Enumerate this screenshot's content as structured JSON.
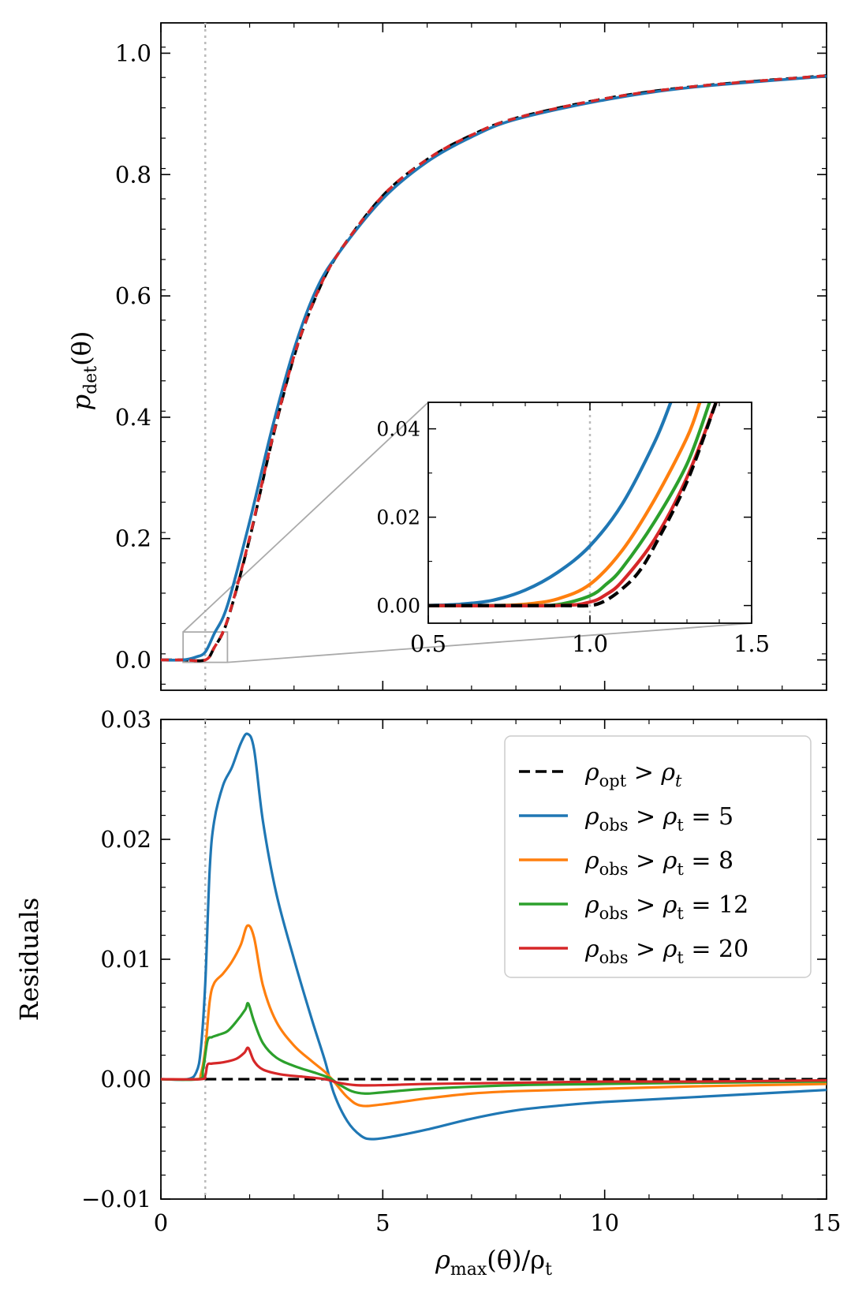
{
  "chart_data": [
    {
      "id": "top",
      "type": "line",
      "ylabel": "p_det(θ)",
      "xlim": [
        0,
        15
      ],
      "ylim": [
        -0.05,
        1.05
      ],
      "xticks": [
        0,
        5,
        10,
        15
      ],
      "yticks": [
        0.0,
        0.2,
        0.4,
        0.6,
        0.8,
        1.0
      ],
      "ytick_labels": [
        "0.0",
        "0.2",
        "0.4",
        "0.6",
        "0.8",
        "1.0"
      ],
      "vline_x": 1.0,
      "series": [
        {
          "name": "ρ_opt > ρ_t",
          "color": "#000000",
          "style": "dashed",
          "x": [
            0,
            0.5,
            1.0,
            1.2,
            1.5,
            2.0,
            2.5,
            3.0,
            3.5,
            4.0,
            5.0,
            6.0,
            7.0,
            8.0,
            10.0,
            12.0,
            15.0
          ],
          "y": [
            0.0,
            0.0,
            0.0,
            0.02,
            0.065,
            0.2,
            0.36,
            0.5,
            0.6,
            0.67,
            0.765,
            0.825,
            0.865,
            0.893,
            0.925,
            0.945,
            0.963
          ]
        },
        {
          "name": "ρ_obs > ρ_t = 5",
          "color": "#1f77b4",
          "style": "solid",
          "x": [
            0,
            0.5,
            0.8,
            1.0,
            1.2,
            1.5,
            2.0,
            2.5,
            3.0,
            3.5,
            4.0,
            5.0,
            6.0,
            7.0,
            8.0,
            10.0,
            12.0,
            15.0
          ],
          "y": [
            0.0,
            0.0,
            0.005,
            0.013,
            0.043,
            0.09,
            0.228,
            0.38,
            0.512,
            0.61,
            0.67,
            0.76,
            0.821,
            0.862,
            0.891,
            0.923,
            0.944,
            0.962
          ]
        },
        {
          "name": "ρ_obs > ρ_t = 20",
          "color": "#d62728",
          "style": "dashed",
          "x": [
            0,
            0.5,
            1.0,
            1.2,
            1.5,
            2.0,
            2.5,
            3.0,
            3.5,
            4.0,
            5.0,
            6.0,
            7.0,
            8.0,
            10.0,
            12.0,
            15.0
          ],
          "y": [
            0.0,
            0.0,
            0.0,
            0.02,
            0.066,
            0.202,
            0.362,
            0.501,
            0.601,
            0.67,
            0.765,
            0.825,
            0.865,
            0.893,
            0.925,
            0.945,
            0.963
          ]
        }
      ]
    },
    {
      "id": "inset",
      "type": "line",
      "xlim": [
        0.5,
        1.5
      ],
      "ylim": [
        -0.004,
        0.046
      ],
      "xticks": [
        0.5,
        1.0,
        1.5
      ],
      "xtick_labels": [
        "0.5",
        "1.0",
        "1.5"
      ],
      "yticks": [
        0.0,
        0.02,
        0.04
      ],
      "ytick_labels": [
        "0.00",
        "0.02",
        "0.04"
      ],
      "vline_x": 1.0,
      "series": [
        {
          "name": "ρ_obs > ρ_t = 5",
          "color": "#1f77b4",
          "x": [
            0.5,
            0.6,
            0.7,
            0.8,
            0.9,
            1.0,
            1.1,
            1.2,
            1.25
          ],
          "y": [
            0.0,
            0.0003,
            0.0012,
            0.0035,
            0.0075,
            0.0135,
            0.023,
            0.037,
            0.046
          ]
        },
        {
          "name": "ρ_obs > ρ_t = 8",
          "color": "#ff7f0e",
          "x": [
            0.5,
            0.7,
            0.8,
            0.9,
            1.0,
            1.1,
            1.2,
            1.3,
            1.34
          ],
          "y": [
            0.0,
            0.0,
            0.0003,
            0.0015,
            0.0048,
            0.0125,
            0.024,
            0.038,
            0.046
          ]
        },
        {
          "name": "ρ_obs > ρ_t = 12",
          "color": "#2ca02c",
          "x": [
            0.5,
            0.8,
            0.9,
            1.0,
            1.05,
            1.1,
            1.2,
            1.3,
            1.37
          ],
          "y": [
            0.0,
            0.0,
            0.0002,
            0.0022,
            0.0048,
            0.0085,
            0.019,
            0.032,
            0.046
          ]
        },
        {
          "name": "ρ_obs > ρ_t = 20",
          "color": "#d62728",
          "x": [
            0.5,
            0.9,
            1.0,
            1.05,
            1.1,
            1.2,
            1.3,
            1.39
          ],
          "y": [
            0.0,
            0.0,
            0.0008,
            0.0025,
            0.0055,
            0.015,
            0.029,
            0.046
          ]
        },
        {
          "name": "ρ_opt > ρ_t",
          "color": "#000000",
          "style": "dashed",
          "x": [
            0.5,
            0.9,
            1.0,
            1.05,
            1.1,
            1.15,
            1.2,
            1.3,
            1.39
          ],
          "y": [
            0.0,
            0.0,
            0.0,
            0.0012,
            0.0038,
            0.0075,
            0.0135,
            0.028,
            0.046
          ]
        }
      ]
    },
    {
      "id": "bottom",
      "type": "line",
      "xlabel": "ρ_max(θ)/ρ_t",
      "ylabel": "Residuals",
      "xlim": [
        0,
        15
      ],
      "ylim": [
        -0.01,
        0.03
      ],
      "xticks": [
        0,
        5,
        10,
        15
      ],
      "xtick_labels": [
        "0",
        "5",
        "10",
        "15"
      ],
      "yticks": [
        -0.01,
        0.0,
        0.01,
        0.02,
        0.03
      ],
      "ytick_labels": [
        "−0.01",
        "0.00",
        "0.01",
        "0.02",
        "0.03"
      ],
      "vline_x": 1.0,
      "legend_position": "top-right",
      "series": [
        {
          "name": "ρ_opt > ρ_t",
          "color": "#000000",
          "style": "dashed",
          "x": [
            1.0,
            15.0
          ],
          "y": [
            0.0,
            0.0
          ]
        },
        {
          "name": "ρ_obs > ρ_t = 5",
          "color": "#1f77b4",
          "style": "solid",
          "x": [
            0,
            0.6,
            0.8,
            0.9,
            1.0,
            1.1,
            1.2,
            1.4,
            1.6,
            1.8,
            1.95,
            2.1,
            2.3,
            2.6,
            3.0,
            3.4,
            3.7,
            3.9,
            4.2,
            4.5,
            4.75,
            5.2,
            6.0,
            7.0,
            8.0,
            9.0,
            10.0,
            12.0,
            15.0
          ],
          "y": [
            0.0,
            0.0,
            0.0006,
            0.0025,
            0.008,
            0.0175,
            0.0215,
            0.0245,
            0.026,
            0.028,
            0.0288,
            0.0275,
            0.0215,
            0.0155,
            0.01,
            0.005,
            0.0015,
            -0.0012,
            -0.0035,
            -0.0047,
            -0.005,
            -0.0048,
            -0.0042,
            -0.0033,
            -0.0026,
            -0.0022,
            -0.0019,
            -0.0015,
            -0.0009
          ]
        },
        {
          "name": "ρ_obs > ρ_t = 8",
          "color": "#ff7f0e",
          "style": "solid",
          "x": [
            0,
            0.8,
            0.9,
            1.0,
            1.1,
            1.2,
            1.4,
            1.6,
            1.8,
            1.95,
            2.1,
            2.3,
            2.6,
            3.0,
            3.4,
            3.7,
            3.9,
            4.2,
            4.5,
            5.0,
            6.0,
            7.0,
            8.0,
            10.0,
            12.0,
            15.0
          ],
          "y": [
            0.0,
            0.0,
            0.0004,
            0.0025,
            0.0065,
            0.008,
            0.0088,
            0.0098,
            0.0112,
            0.0128,
            0.0118,
            0.0078,
            0.0048,
            0.0028,
            0.0015,
            0.0006,
            -0.0002,
            -0.0015,
            -0.0022,
            -0.0021,
            -0.0016,
            -0.0012,
            -0.001,
            -0.0008,
            -0.0006,
            -0.0004
          ]
        },
        {
          "name": "ρ_obs > ρ_t = 12",
          "color": "#2ca02c",
          "style": "solid",
          "x": [
            0,
            0.85,
            0.95,
            1.05,
            1.15,
            1.3,
            1.5,
            1.7,
            1.9,
            1.97,
            2.1,
            2.3,
            2.6,
            3.0,
            3.5,
            3.8,
            4.0,
            4.3,
            4.6,
            5.0,
            6.0,
            8.0,
            10.0,
            12.0,
            15.0
          ],
          "y": [
            0.0,
            0.0,
            0.0008,
            0.0032,
            0.0035,
            0.0037,
            0.004,
            0.0048,
            0.0058,
            0.0063,
            0.0048,
            0.003,
            0.0018,
            0.0011,
            0.0005,
            0.0001,
            -0.0004,
            -0.001,
            -0.0012,
            -0.0011,
            -0.0008,
            -0.0005,
            -0.0004,
            -0.0003,
            -0.0002
          ]
        },
        {
          "name": "ρ_obs > ρ_t = 20",
          "color": "#d62728",
          "style": "solid",
          "x": [
            0,
            0.9,
            1.0,
            1.05,
            1.15,
            1.4,
            1.7,
            1.88,
            1.97,
            2.1,
            2.3,
            2.7,
            3.2,
            3.7,
            4.0,
            4.4,
            5.0,
            6.0,
            8.0,
            10.0,
            12.0,
            15.0
          ],
          "y": [
            0.0,
            0.0,
            0.0003,
            0.0012,
            0.0013,
            0.0014,
            0.0017,
            0.0022,
            0.0026,
            0.0015,
            0.0008,
            0.0004,
            0.0002,
            0.0,
            -0.0003,
            -0.0005,
            -0.0005,
            -0.0004,
            -0.0003,
            -0.0002,
            -0.0002,
            -0.0001
          ]
        }
      ],
      "legend": [
        {
          "sub": "opt",
          "rhs": "ρ",
          "rhs_sub": "t",
          "rhs_italic_sub": true,
          "value": "",
          "color": "#000000",
          "style": "dashed"
        },
        {
          "sub": "obs",
          "rhs": "ρ",
          "rhs_sub": "t",
          "rhs_italic_sub": false,
          "value": "= 5",
          "color": "#1f77b4",
          "style": "solid"
        },
        {
          "sub": "obs",
          "rhs": "ρ",
          "rhs_sub": "t",
          "rhs_italic_sub": false,
          "value": "= 8",
          "color": "#ff7f0e",
          "style": "solid"
        },
        {
          "sub": "obs",
          "rhs": "ρ",
          "rhs_sub": "t",
          "rhs_italic_sub": false,
          "value": "= 12",
          "color": "#2ca02c",
          "style": "solid"
        },
        {
          "sub": "obs",
          "rhs": "ρ",
          "rhs_sub": "t",
          "rhs_italic_sub": false,
          "value": "= 20",
          "color": "#d62728",
          "style": "solid"
        }
      ]
    }
  ],
  "labels": {
    "top_ylabel_main": "p",
    "top_ylabel_sub": "det",
    "top_ylabel_arg": "(θ)",
    "bottom_ylabel": "Residuals",
    "xlabel_main": "ρ",
    "xlabel_sub": "max",
    "xlabel_mid": "(θ)/ρ",
    "xlabel_sub2": "t"
  }
}
